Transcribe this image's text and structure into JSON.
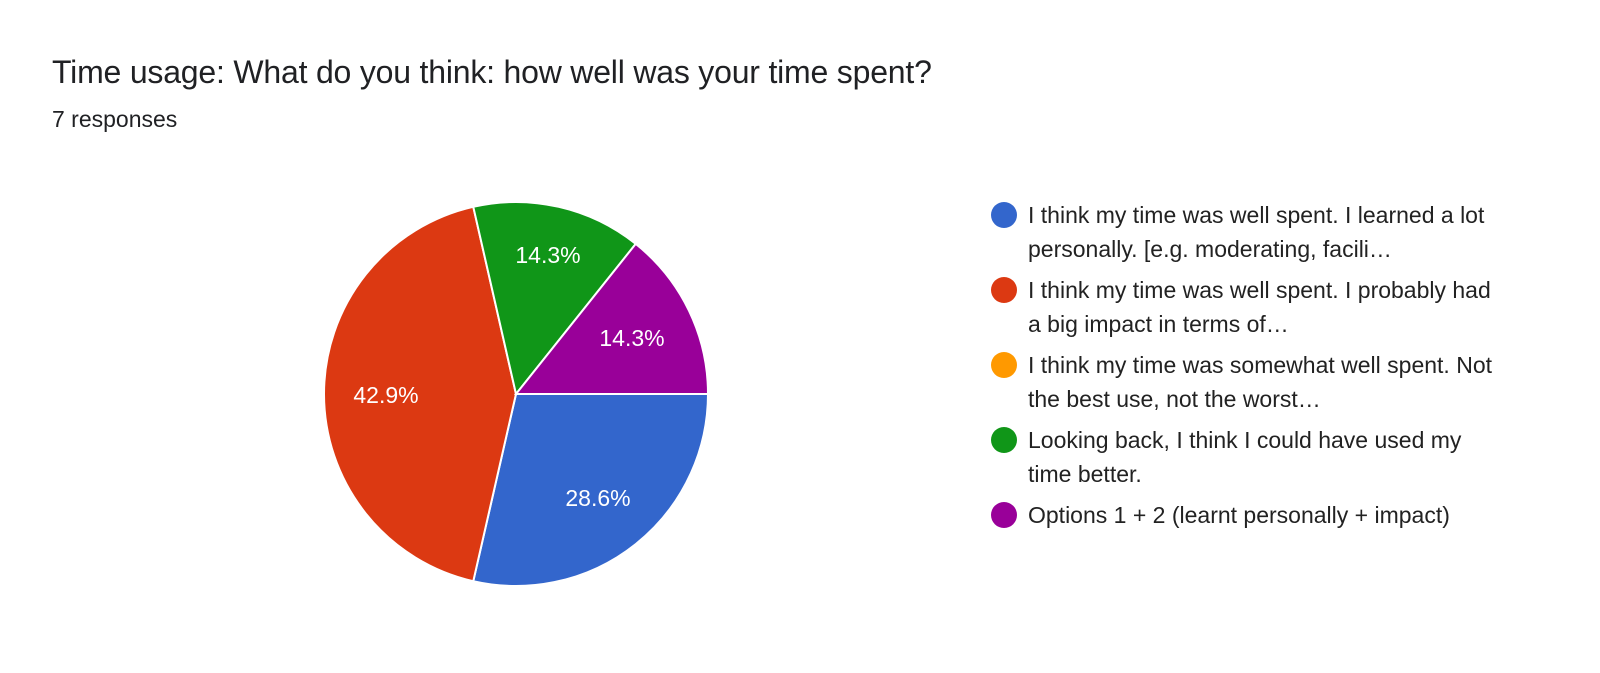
{
  "header": {
    "title": "Time usage: What do you think: how well was your time spent?",
    "responses": "7 responses"
  },
  "chart_data": {
    "type": "pie",
    "title": "Time usage: What do you think: how well was your time spent?",
    "subtitle": "7 responses",
    "total_responses": 7,
    "categories": [
      "I think my time was well spent. I learned a lot personally. [e.g. moderating, facili…",
      "I think my time was well spent. I probably had a big impact in terms of…",
      "I think my time was somewhat well spent. Not the best use, not the worst…",
      "Looking back, I think I could have used my time better.",
      "Options 1 + 2 (learnt personally + impact)"
    ],
    "values": [
      28.6,
      42.9,
      0,
      14.3,
      14.3
    ],
    "counts": [
      2,
      3,
      0,
      1,
      1
    ],
    "colors": [
      "#3366cc",
      "#dc3912",
      "#ff9900",
      "#109618",
      "#990099"
    ],
    "slice_labels": [
      "28.6%",
      "42.9%",
      "",
      "14.3%",
      "14.3%"
    ],
    "legend_position": "right"
  },
  "legend": {
    "items": [
      {
        "label": "I think my time was well spent. I learned a lot personally. [e.g. moderating, facili…",
        "color": "#3366cc"
      },
      {
        "label": "I think my time was well spent. I probably had a big impact in terms of…",
        "color": "#dc3912"
      },
      {
        "label": "I think my time was somewhat well spent. Not the best use, not the worst…",
        "color": "#ff9900"
      },
      {
        "label": "Looking back, I think I could have used my time better.",
        "color": "#109618"
      },
      {
        "label": "Options 1 + 2 (learnt personally + impact)",
        "color": "#990099"
      }
    ]
  },
  "pie": {
    "labels": {
      "blue": "28.6%",
      "red": "42.9%",
      "green": "14.3%",
      "purple": "14.3%"
    }
  }
}
